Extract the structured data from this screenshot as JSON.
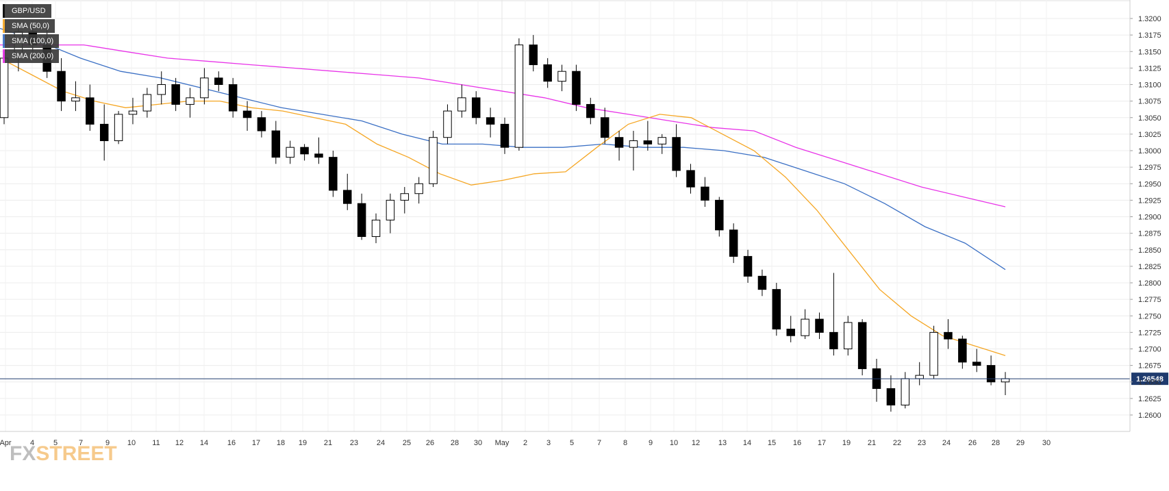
{
  "legend": {
    "symbol": "GBP/USD",
    "sma50": "SMA (50,0)",
    "sma100": "SMA (100,0)",
    "sma200": "SMA (200,0)"
  },
  "logo": {
    "part1": "FX",
    "part2": "STREET"
  },
  "colors": {
    "symbol": "#000000",
    "sma50": "#f5a623",
    "sma100": "#3a6fc4",
    "sma200": "#e833e8",
    "price_line": "#1f3b6e",
    "candle_up": "#ffffff",
    "candle_down": "#000000"
  },
  "chart_data": {
    "type": "candlestick",
    "ylim": [
      1.258,
      1.322
    ],
    "y_ticks": [
      "1.3200",
      "1.3175",
      "1.3150",
      "1.3125",
      "1.3100",
      "1.3075",
      "1.3050",
      "1.3025",
      "1.3000",
      "1.2975",
      "1.2950",
      "1.2925",
      "1.2900",
      "1.2875",
      "1.2850",
      "1.2825",
      "1.2800",
      "1.2775",
      "1.2750",
      "1.2725",
      "1.2700",
      "1.2675",
      "1.2650",
      "1.2625",
      "1.2600"
    ],
    "x_labels": [
      "Apr",
      "4",
      "5",
      "7",
      "9",
      "10",
      "11",
      "12",
      "14",
      "16",
      "17",
      "18",
      "19",
      "21",
      "23",
      "24",
      "25",
      "26",
      "28",
      "30",
      "May",
      "2",
      "3",
      "5",
      "7",
      "8",
      "9",
      "10",
      "12",
      "13",
      "14",
      "15",
      "16",
      "17",
      "19",
      "21",
      "22",
      "23",
      "24",
      "26",
      "28",
      "29",
      "30"
    ],
    "current_price": 1.26548,
    "current_price_label": "1.26548",
    "sma50": [
      1.314,
      1.3115,
      1.309,
      1.3075,
      1.3065,
      1.307,
      1.3075,
      1.3075,
      1.3065,
      1.306,
      1.305,
      1.304,
      1.301,
      1.299,
      1.2965,
      1.2948,
      1.2955,
      1.2965,
      1.2968,
      1.3005,
      1.304,
      1.3055,
      1.305,
      1.3025,
      1.3,
      1.296,
      1.291,
      1.285,
      1.279,
      1.275,
      1.272,
      1.2705,
      1.269
    ],
    "sma100": [
      1.3185,
      1.3165,
      1.314,
      1.312,
      1.311,
      1.3095,
      1.308,
      1.3065,
      1.3055,
      1.3045,
      1.3025,
      1.301,
      1.301,
      1.3005,
      1.3005,
      1.301,
      1.3005,
      1.3005,
      1.3,
      1.299,
      1.297,
      1.295,
      1.292,
      1.2885,
      1.286,
      1.282
    ],
    "sma200": [
      1.316,
      1.316,
      1.316,
      1.315,
      1.314,
      1.3135,
      1.313,
      1.3125,
      1.312,
      1.3115,
      1.311,
      1.31,
      1.309,
      1.308,
      1.3065,
      1.3055,
      1.3045,
      1.3035,
      1.303,
      1.3005,
      1.2985,
      1.2965,
      1.2945,
      1.293,
      1.2915
    ],
    "ohlc": [
      [
        1.305,
        1.315,
        1.304,
        1.314
      ],
      [
        1.314,
        1.319,
        1.312,
        1.318
      ],
      [
        1.318,
        1.319,
        1.315,
        1.316
      ],
      [
        1.316,
        1.3185,
        1.311,
        1.312
      ],
      [
        1.312,
        1.314,
        1.306,
        1.3075
      ],
      [
        1.3075,
        1.3105,
        1.306,
        1.308
      ],
      [
        1.308,
        1.31,
        1.303,
        1.304
      ],
      [
        1.304,
        1.307,
        1.2985,
        1.3015
      ],
      [
        1.3015,
        1.306,
        1.301,
        1.3055
      ],
      [
        1.3055,
        1.308,
        1.304,
        1.306
      ],
      [
        1.306,
        1.3095,
        1.305,
        1.3085
      ],
      [
        1.3085,
        1.312,
        1.307,
        1.31
      ],
      [
        1.31,
        1.311,
        1.306,
        1.307
      ],
      [
        1.307,
        1.3095,
        1.305,
        1.308
      ],
      [
        1.308,
        1.3125,
        1.307,
        1.311
      ],
      [
        1.311,
        1.312,
        1.309,
        1.31
      ],
      [
        1.31,
        1.311,
        1.305,
        1.306
      ],
      [
        1.306,
        1.3075,
        1.303,
        1.305
      ],
      [
        1.305,
        1.306,
        1.302,
        1.303
      ],
      [
        1.303,
        1.3045,
        1.298,
        1.299
      ],
      [
        1.299,
        1.3015,
        1.298,
        1.3005
      ],
      [
        1.3005,
        1.301,
        1.2985,
        1.2995
      ],
      [
        1.2995,
        1.302,
        1.298,
        1.299
      ],
      [
        1.299,
        1.3,
        1.293,
        1.294
      ],
      [
        1.294,
        1.2965,
        1.291,
        1.292
      ],
      [
        1.292,
        1.2935,
        1.2865,
        1.287
      ],
      [
        1.287,
        1.2905,
        1.286,
        1.2895
      ],
      [
        1.2895,
        1.2935,
        1.2875,
        1.2925
      ],
      [
        1.2925,
        1.2945,
        1.2905,
        1.2935
      ],
      [
        1.2935,
        1.296,
        1.292,
        1.295
      ],
      [
        1.295,
        1.303,
        1.2945,
        1.302
      ],
      [
        1.302,
        1.307,
        1.301,
        1.306
      ],
      [
        1.306,
        1.31,
        1.305,
        1.308
      ],
      [
        1.308,
        1.309,
        1.304,
        1.305
      ],
      [
        1.305,
        1.3065,
        1.302,
        1.304
      ],
      [
        1.304,
        1.305,
        1.2995,
        1.3005
      ],
      [
        1.3005,
        1.317,
        1.3,
        1.316
      ],
      [
        1.316,
        1.3175,
        1.312,
        1.313
      ],
      [
        1.313,
        1.314,
        1.3095,
        1.3105
      ],
      [
        1.3105,
        1.313,
        1.309,
        1.312
      ],
      [
        1.312,
        1.313,
        1.306,
        1.307
      ],
      [
        1.307,
        1.308,
        1.304,
        1.305
      ],
      [
        1.305,
        1.3065,
        1.301,
        1.302
      ],
      [
        1.302,
        1.303,
        1.2985,
        1.3005
      ],
      [
        1.3005,
        1.303,
        1.297,
        1.3015
      ],
      [
        1.3015,
        1.3045,
        1.3,
        1.301
      ],
      [
        1.301,
        1.3025,
        1.2995,
        1.302
      ],
      [
        1.302,
        1.304,
        1.296,
        1.297
      ],
      [
        1.297,
        1.298,
        1.2935,
        1.2945
      ],
      [
        1.2945,
        1.296,
        1.2915,
        1.2925
      ],
      [
        1.2925,
        1.293,
        1.287,
        1.288
      ],
      [
        1.288,
        1.289,
        1.283,
        1.284
      ],
      [
        1.284,
        1.285,
        1.28,
        1.281
      ],
      [
        1.281,
        1.282,
        1.278,
        1.279
      ],
      [
        1.279,
        1.28,
        1.272,
        1.273
      ],
      [
        1.273,
        1.275,
        1.271,
        1.272
      ],
      [
        1.272,
        1.276,
        1.2715,
        1.2745
      ],
      [
        1.2745,
        1.2755,
        1.2715,
        1.2725
      ],
      [
        1.2725,
        1.2815,
        1.269,
        1.27
      ],
      [
        1.27,
        1.275,
        1.269,
        1.274
      ],
      [
        1.274,
        1.2745,
        1.266,
        1.267
      ],
      [
        1.267,
        1.2685,
        1.262,
        1.264
      ],
      [
        1.264,
        1.266,
        1.2605,
        1.2615
      ],
      [
        1.2615,
        1.2665,
        1.261,
        1.2655
      ],
      [
        1.2655,
        1.268,
        1.2645,
        1.266
      ],
      [
        1.266,
        1.2735,
        1.2655,
        1.2725
      ],
      [
        1.2725,
        1.2745,
        1.27,
        1.2715
      ],
      [
        1.2715,
        1.272,
        1.267,
        1.268
      ],
      [
        1.268,
        1.27,
        1.2665,
        1.2675
      ],
      [
        1.2675,
        1.269,
        1.2645,
        1.265
      ],
      [
        1.265,
        1.2665,
        1.263,
        1.2655
      ]
    ]
  }
}
